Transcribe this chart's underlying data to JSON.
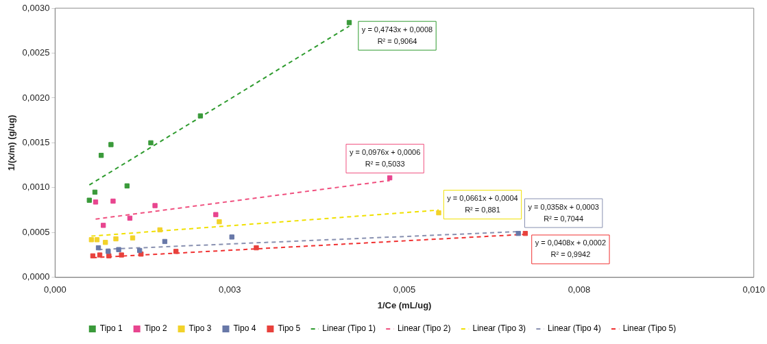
{
  "chart_data": {
    "type": "scatter",
    "xlabel": "1/Ce (mL/ug)",
    "ylabel": "1/(x/m) (g/ug)",
    "xlim": [
      0,
      0.01
    ],
    "ylim": [
      0,
      0.003
    ],
    "xticks": [
      {
        "value": 0,
        "label": "0,000"
      },
      {
        "value": 0.0025,
        "label": "0,003"
      },
      {
        "value": 0.005,
        "label": "0,005"
      },
      {
        "value": 0.0075,
        "label": "0,008"
      },
      {
        "value": 0.01,
        "label": "0,010"
      }
    ],
    "yticks": [
      {
        "value": 0,
        "label": "0,0000"
      },
      {
        "value": 0.0005,
        "label": "0,0005"
      },
      {
        "value": 0.001,
        "label": "0,0010"
      },
      {
        "value": 0.0015,
        "label": "0,0015"
      },
      {
        "value": 0.002,
        "label": "0,0020"
      },
      {
        "value": 0.0025,
        "label": "0,0025"
      },
      {
        "value": 0.003,
        "label": "0,0030"
      }
    ],
    "grid": false,
    "legend": "bottom",
    "series": [
      {
        "name": "Tipo 1",
        "marker": "square",
        "color": "#3a9a3a",
        "x": [
          0.00049,
          0.00057,
          0.00066,
          0.0008,
          0.00103,
          0.00137,
          0.00208,
          0.00421
        ],
        "values": [
          0.00086,
          0.00095,
          0.00136,
          0.00148,
          0.00102,
          0.0015,
          0.0018,
          0.00284
        ]
      },
      {
        "name": "Tipo 2",
        "marker": "square",
        "color": "#e8458f",
        "x": [
          0.00058,
          0.00069,
          0.00083,
          0.00107,
          0.00143,
          0.0023,
          0.00479
        ],
        "values": [
          0.00084,
          0.00058,
          0.00085,
          0.00066,
          0.0008,
          0.0007,
          0.00111
        ]
      },
      {
        "name": "Tipo 3",
        "marker": "square",
        "color": "#f2d22a",
        "x": [
          0.00052,
          0.0006,
          0.00072,
          0.00087,
          0.00111,
          0.0015,
          0.00235,
          0.00549
        ],
        "values": [
          0.00042,
          0.00042,
          0.00039,
          0.00043,
          0.00044,
          0.00053,
          0.00062,
          0.00072
        ]
      },
      {
        "name": "Tipo 4",
        "marker": "square",
        "color": "#6878a8",
        "x": [
          0.00062,
          0.00076,
          0.00091,
          0.00121,
          0.00157,
          0.00253,
          0.00663
        ],
        "values": [
          0.00033,
          0.00029,
          0.00031,
          0.0003,
          0.0004,
          0.00045,
          0.00049
        ]
      },
      {
        "name": "Tipo 5",
        "marker": "square",
        "color": "#e8413c",
        "x": [
          0.00054,
          0.00064,
          0.00077,
          0.00095,
          0.00123,
          0.00173,
          0.00288,
          0.00673
        ],
        "values": [
          0.00024,
          0.00025,
          0.00024,
          0.00025,
          0.00026,
          0.00029,
          0.00033,
          0.00049
        ]
      },
      {
        "name": "Linear (Tipo 1)",
        "type": "line",
        "marker": "none",
        "line_style": "dashed",
        "color": "#2e9b2e",
        "x": [
          0.00049,
          0.00421
        ],
        "values": [
          0.00103,
          0.0028
        ]
      },
      {
        "name": "Linear (Tipo 2)",
        "type": "line",
        "marker": "none",
        "line_style": "dashed",
        "color": "#f0507f",
        "x": [
          0.00058,
          0.00479
        ],
        "values": [
          0.00065,
          0.00108
        ]
      },
      {
        "name": "Linear (Tipo 3)",
        "type": "line",
        "marker": "none",
        "line_style": "dashed",
        "color": "#f0e000",
        "x": [
          0.00052,
          0.00549
        ],
        "values": [
          0.00046,
          0.00075
        ]
      },
      {
        "name": "Linear (Tipo 4)",
        "type": "line",
        "marker": "none",
        "line_style": "dashed",
        "color": "#8890b0",
        "x": [
          0.00062,
          0.00663
        ],
        "values": [
          0.00031,
          0.00051
        ]
      },
      {
        "name": "Linear (Tipo 5)",
        "type": "line",
        "marker": "none",
        "line_style": "dashed",
        "color": "#f03030",
        "x": [
          0.00054,
          0.00673
        ],
        "values": [
          0.00022,
          0.00048
        ]
      }
    ],
    "annotations": [
      {
        "text": "y = 0,4743x + 0,0008\nR² = 0,9064",
        "x": 0.00421,
        "y": 0.0028
      },
      {
        "text": "y = 0,0976x + 0,0006\nR² = 0,5033",
        "x": 0.00479,
        "y": 0.00108
      },
      {
        "text": "y = 0,0661x + 0,0004\nR² = 0,881",
        "x": 0.00549,
        "y": 0.00075
      },
      {
        "text": "y = 0,0358x + 0,0003\nR² = 0,7044",
        "x": 0.00663,
        "y": 0.00051
      },
      {
        "text": "y = 0,0408x + 0,0002\nR² = 0,9942",
        "x": 0.00673,
        "y": 0.00048
      }
    ]
  }
}
